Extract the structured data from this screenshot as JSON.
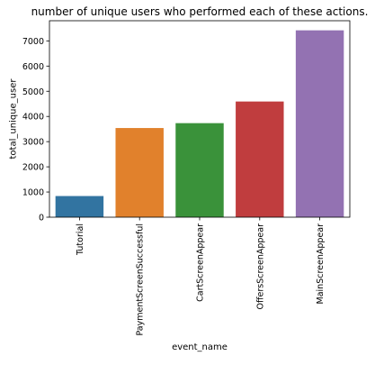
{
  "chart_data": {
    "type": "bar",
    "title": "number of unique users who performed each of these actions.",
    "xlabel": "event_name",
    "ylabel": "total_unique_user",
    "categories": [
      "Tutorial",
      "PaymentScreenSuccessful",
      "CartScreenAppear",
      "OffersScreenAppear",
      "MainScreenAppear"
    ],
    "values": [
      840,
      3540,
      3734,
      4593,
      7419
    ],
    "ylim": [
      0,
      7800
    ],
    "yticks": [
      0,
      1000,
      2000,
      3000,
      4000,
      5000,
      6000,
      7000
    ],
    "grid": false,
    "colors": [
      "#3274a1",
      "#e1812c",
      "#3a923a",
      "#c03d3e",
      "#9372b2"
    ]
  }
}
